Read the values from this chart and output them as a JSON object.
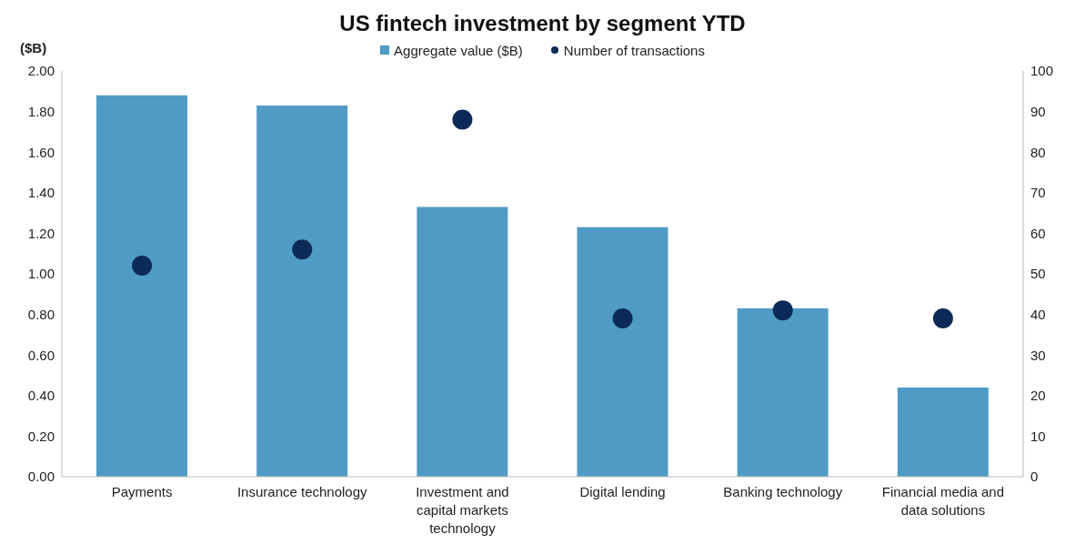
{
  "chart_data": {
    "type": "bar",
    "title": "US fintech investment by segment YTD",
    "ylabel": "($B)",
    "categories": [
      "Payments",
      "Insurance technology",
      "Investment and capital markets technology",
      "Digital lending",
      "Banking technology",
      "Financial media and data solutions"
    ],
    "series": [
      {
        "name": "Aggregate value ($B)",
        "color": "#4f9bc5",
        "values": [
          1.88,
          1.83,
          1.33,
          1.23,
          0.83,
          0.44
        ]
      },
      {
        "name": "Number of transactions",
        "type": "scatter",
        "axis": "y2",
        "color": "#0b2a57",
        "values": [
          52,
          56,
          88,
          39,
          41,
          39
        ]
      }
    ],
    "ylim": [
      0,
      2
    ],
    "yticks": [
      {
        "value": 0,
        "label": "0.00"
      },
      {
        "value": 0.2,
        "label": "0.20"
      },
      {
        "value": 0.4,
        "label": "0.40"
      },
      {
        "value": 0.6,
        "label": "0.60"
      },
      {
        "value": 0.8,
        "label": "0.80"
      },
      {
        "value": 1,
        "label": "1.00"
      },
      {
        "value": 1.2,
        "label": "1.20"
      },
      {
        "value": 1.4,
        "label": "1.40"
      },
      {
        "value": 1.6,
        "label": "1.60"
      },
      {
        "value": 1.8,
        "label": "1.80"
      },
      {
        "value": 2,
        "label": "2.00"
      }
    ],
    "y2lim": [
      0,
      100
    ],
    "y2ticks": [
      0,
      10,
      20,
      30,
      40,
      50,
      60,
      70,
      80,
      90,
      100
    ],
    "grid": false,
    "legend": "top",
    "marker": "circle"
  }
}
